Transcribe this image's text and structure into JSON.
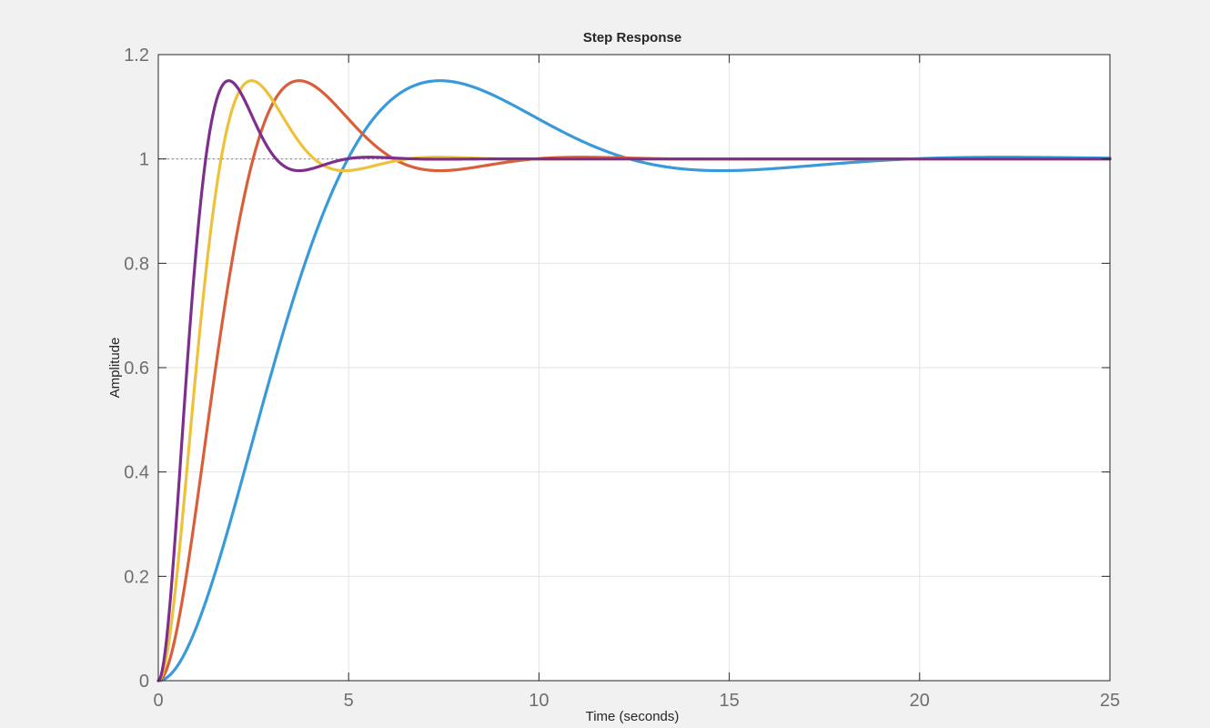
{
  "chart_data": {
    "type": "line",
    "title": "Step Response",
    "xlabel": "Time (seconds)",
    "ylabel": "Amplitude",
    "xlim": [
      0,
      25
    ],
    "ylim": [
      0,
      1.2
    ],
    "xticks": [
      0,
      5,
      10,
      15,
      20,
      25
    ],
    "yticks": [
      0,
      0.2,
      0.4,
      0.6,
      0.8,
      1,
      1.2
    ],
    "xtick_labels": [
      "0",
      "5",
      "10",
      "15",
      "20",
      "25"
    ],
    "ytick_labels": [
      "0",
      "0.2",
      "0.4",
      "0.6",
      "0.8",
      "1",
      "1.2"
    ],
    "grid": true,
    "reference_line": {
      "y": 1,
      "style": "dotted"
    },
    "series": [
      {
        "color": "#3a9ad9",
        "peak_time": 7.4,
        "peak_value": 1.15
      },
      {
        "color": "#d95f3b",
        "peak_time": 3.7,
        "peak_value": 1.15
      },
      {
        "color": "#edc23a",
        "peak_time": 2.45,
        "peak_value": 1.15
      },
      {
        "color": "#7e2f8e",
        "peak_time": 1.85,
        "peak_value": 1.15
      }
    ]
  }
}
